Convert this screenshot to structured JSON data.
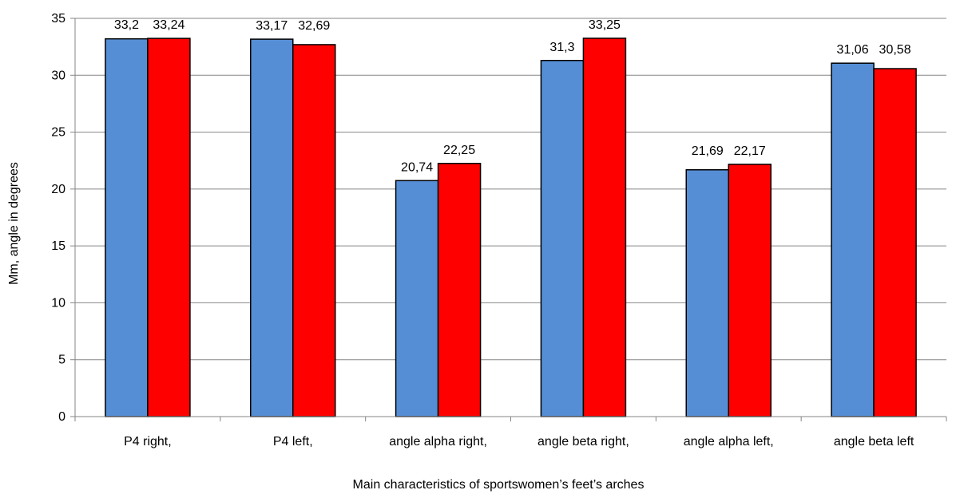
{
  "chart_data": {
    "type": "bar",
    "categories": [
      "P4 right,",
      "P4 left,",
      "angle alpha right,",
      "angle beta right,",
      "angle alpha left,",
      "angle beta left"
    ],
    "series": [
      {
        "values": [
          33.2,
          33.17,
          20.74,
          31.3,
          21.69,
          31.06
        ],
        "labels": [
          "33,2",
          "33,17",
          "20,74",
          "31,3",
          "21,69",
          "31,06"
        ],
        "color": "#558ED5"
      },
      {
        "values": [
          33.24,
          32.69,
          22.25,
          33.25,
          22.17,
          30.58
        ],
        "labels": [
          "33,24",
          "32,69",
          "22,25",
          "33,25",
          "22,17",
          "30,58"
        ],
        "color": "#FF0000"
      }
    ],
    "yticks": [
      "0",
      "5",
      "10",
      "15",
      "20",
      "25",
      "30",
      "35"
    ],
    "ylim": [
      0,
      35
    ],
    "xlabel": "Main characteristics of sportswomen’s feet’s arches",
    "ylabel": "Mm, angle in degrees",
    "grid": true,
    "legend": false
  }
}
